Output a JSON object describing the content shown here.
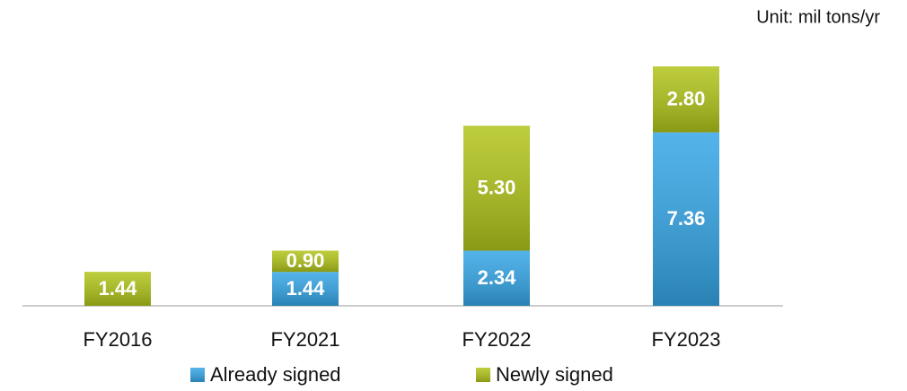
{
  "chart_data": {
    "type": "bar",
    "stacked": true,
    "annotation": "Unit: mil tons/yr",
    "categories": [
      "FY2016",
      "FY2021",
      "FY2022",
      "FY2023"
    ],
    "series": [
      {
        "name": "Already signed",
        "color": "#35a6e6",
        "values": [
          null,
          1.44,
          2.34,
          7.36
        ],
        "value_labels": [
          null,
          "1.44",
          "2.34",
          "7.36"
        ]
      },
      {
        "name": "Newly signed",
        "color": "#b1c41a",
        "values": [
          1.44,
          0.9,
          5.3,
          2.8
        ],
        "value_labels": [
          "1.44",
          "0.90",
          "5.30",
          "2.80"
        ]
      }
    ]
  }
}
